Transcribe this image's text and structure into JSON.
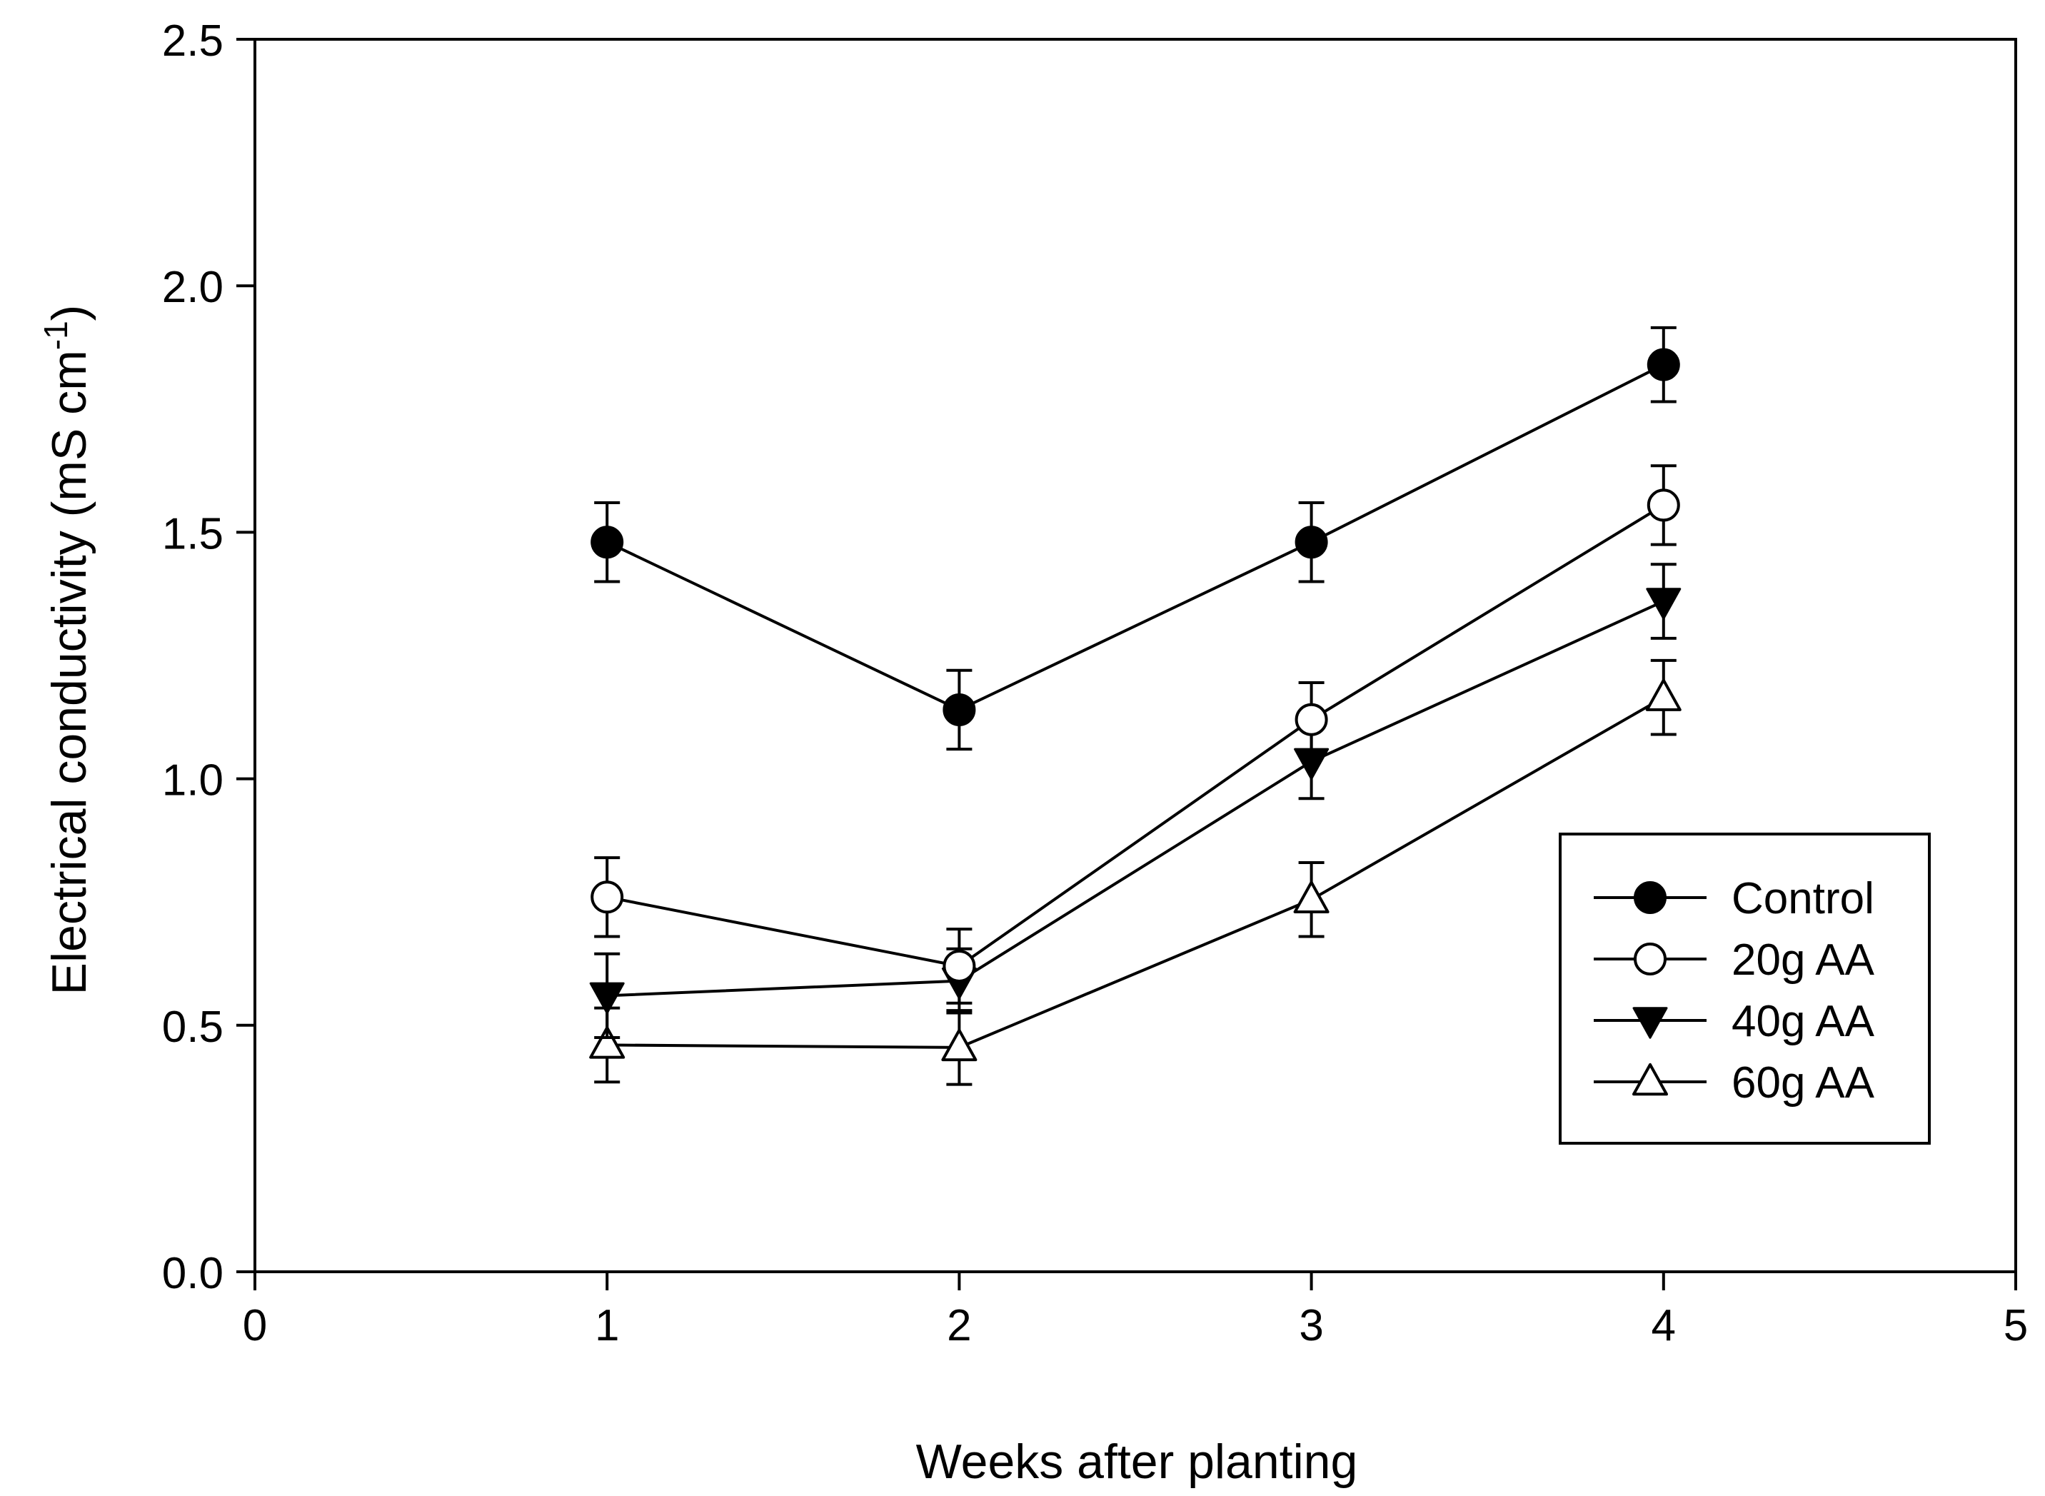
{
  "chart_data": {
    "type": "line",
    "title": "",
    "xlabel": "Weeks after planting",
    "ylabel": {
      "main": "Electrical conductivity (mS cm",
      "superscript": "-1",
      "close": ")"
    },
    "xlim": [
      0,
      5
    ],
    "ylim": [
      0,
      2.5
    ],
    "xticks": [
      "0",
      "1",
      "2",
      "3",
      "4",
      "5"
    ],
    "xtick_values": [
      0,
      1,
      2,
      3,
      4,
      5
    ],
    "yticks": [
      "0.0",
      "0.5",
      "1.0",
      "1.5",
      "2.0",
      "2.5"
    ],
    "ytick_values": [
      0,
      0.5,
      1.0,
      1.5,
      2.0,
      2.5
    ],
    "grid": false,
    "legend_position": "right-middle",
    "x": [
      1,
      2,
      3,
      4
    ],
    "series": [
      {
        "name": "Control",
        "marker": "filled-circle",
        "values": [
          1.48,
          1.14,
          1.48,
          1.84
        ],
        "errors": [
          0.08,
          0.08,
          0.08,
          0.075
        ]
      },
      {
        "name": "20g AA",
        "marker": "open-circle",
        "values": [
          0.76,
          0.62,
          1.12,
          1.555
        ],
        "errors": [
          0.08,
          0.075,
          0.075,
          0.08
        ]
      },
      {
        "name": "40g AA",
        "marker": "filled-triangle-down",
        "values": [
          0.56,
          0.59,
          1.035,
          1.36
        ],
        "errors": [
          0.085,
          0.065,
          0.075,
          0.075
        ]
      },
      {
        "name": "60g AA",
        "marker": "open-triangle-up",
        "values": [
          0.46,
          0.455,
          0.755,
          1.165
        ],
        "errors": [
          0.075,
          0.075,
          0.075,
          0.075
        ]
      }
    ],
    "colors": {
      "line": "#000000",
      "background": "#ffffff"
    }
  }
}
